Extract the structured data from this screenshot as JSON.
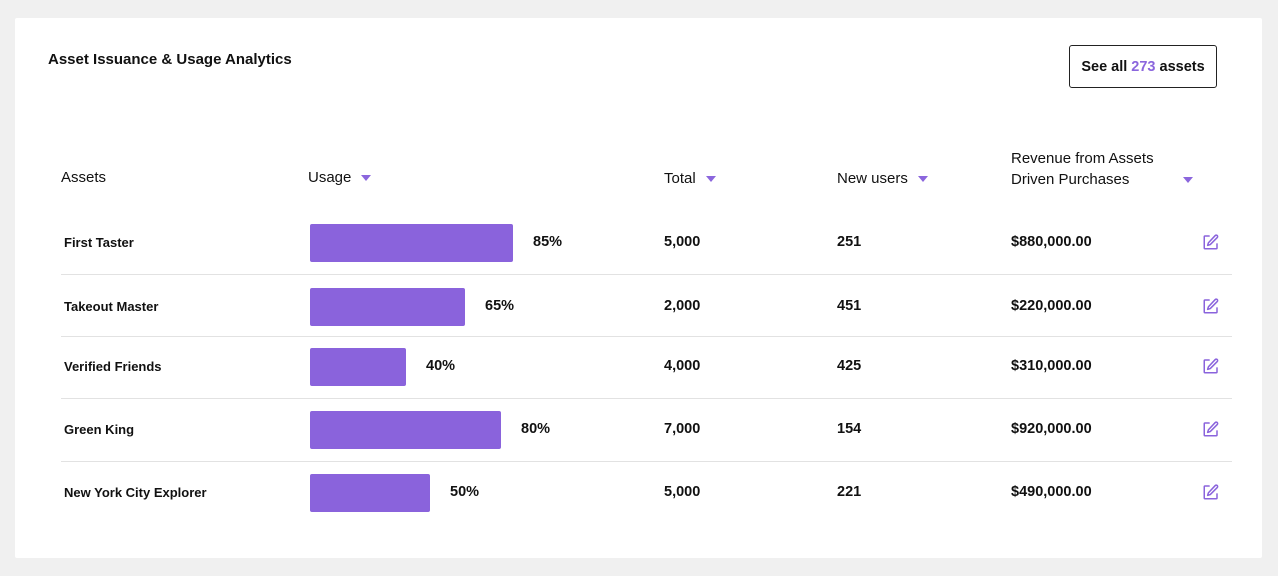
{
  "card": {
    "title": "Asset Issuance & Usage Analytics",
    "see_all": {
      "prefix": "See all",
      "count": "273",
      "suffix": "assets"
    }
  },
  "table": {
    "headers": {
      "assets": "Assets",
      "usage": "Usage",
      "total": "Total",
      "new_users": "New users",
      "revenue_line1": "Revenue from Assets",
      "revenue_line2": "Driven Purchases"
    },
    "rows": [
      {
        "name": "First Taster",
        "usage": 85,
        "usage_label": "85%",
        "total": "5,000",
        "new_users": "251",
        "revenue": "$880,000.00"
      },
      {
        "name": "Takeout Master",
        "usage": 65,
        "usage_label": "65%",
        "total": "2,000",
        "new_users": "451",
        "revenue": "$220,000.00"
      },
      {
        "name": "Verified Friends",
        "usage": 40,
        "usage_label": "40%",
        "total": "4,000",
        "new_users": "425",
        "revenue": "$310,000.00"
      },
      {
        "name": "Green King",
        "usage": 80,
        "usage_label": "80%",
        "total": "7,000",
        "new_users": "154",
        "revenue": "$920,000.00"
      },
      {
        "name": "New York City Explorer",
        "usage": 50,
        "usage_label": "50%",
        "total": "5,000",
        "new_users": "221",
        "revenue": "$490,000.00"
      }
    ]
  },
  "colors": {
    "accent": "#8a63dc",
    "caret": "#8b66dd",
    "divider": "#e2e2e2",
    "background": "#f0f0f0"
  },
  "icons": {
    "sort": "caret-down-icon",
    "edit": "edit-icon"
  }
}
